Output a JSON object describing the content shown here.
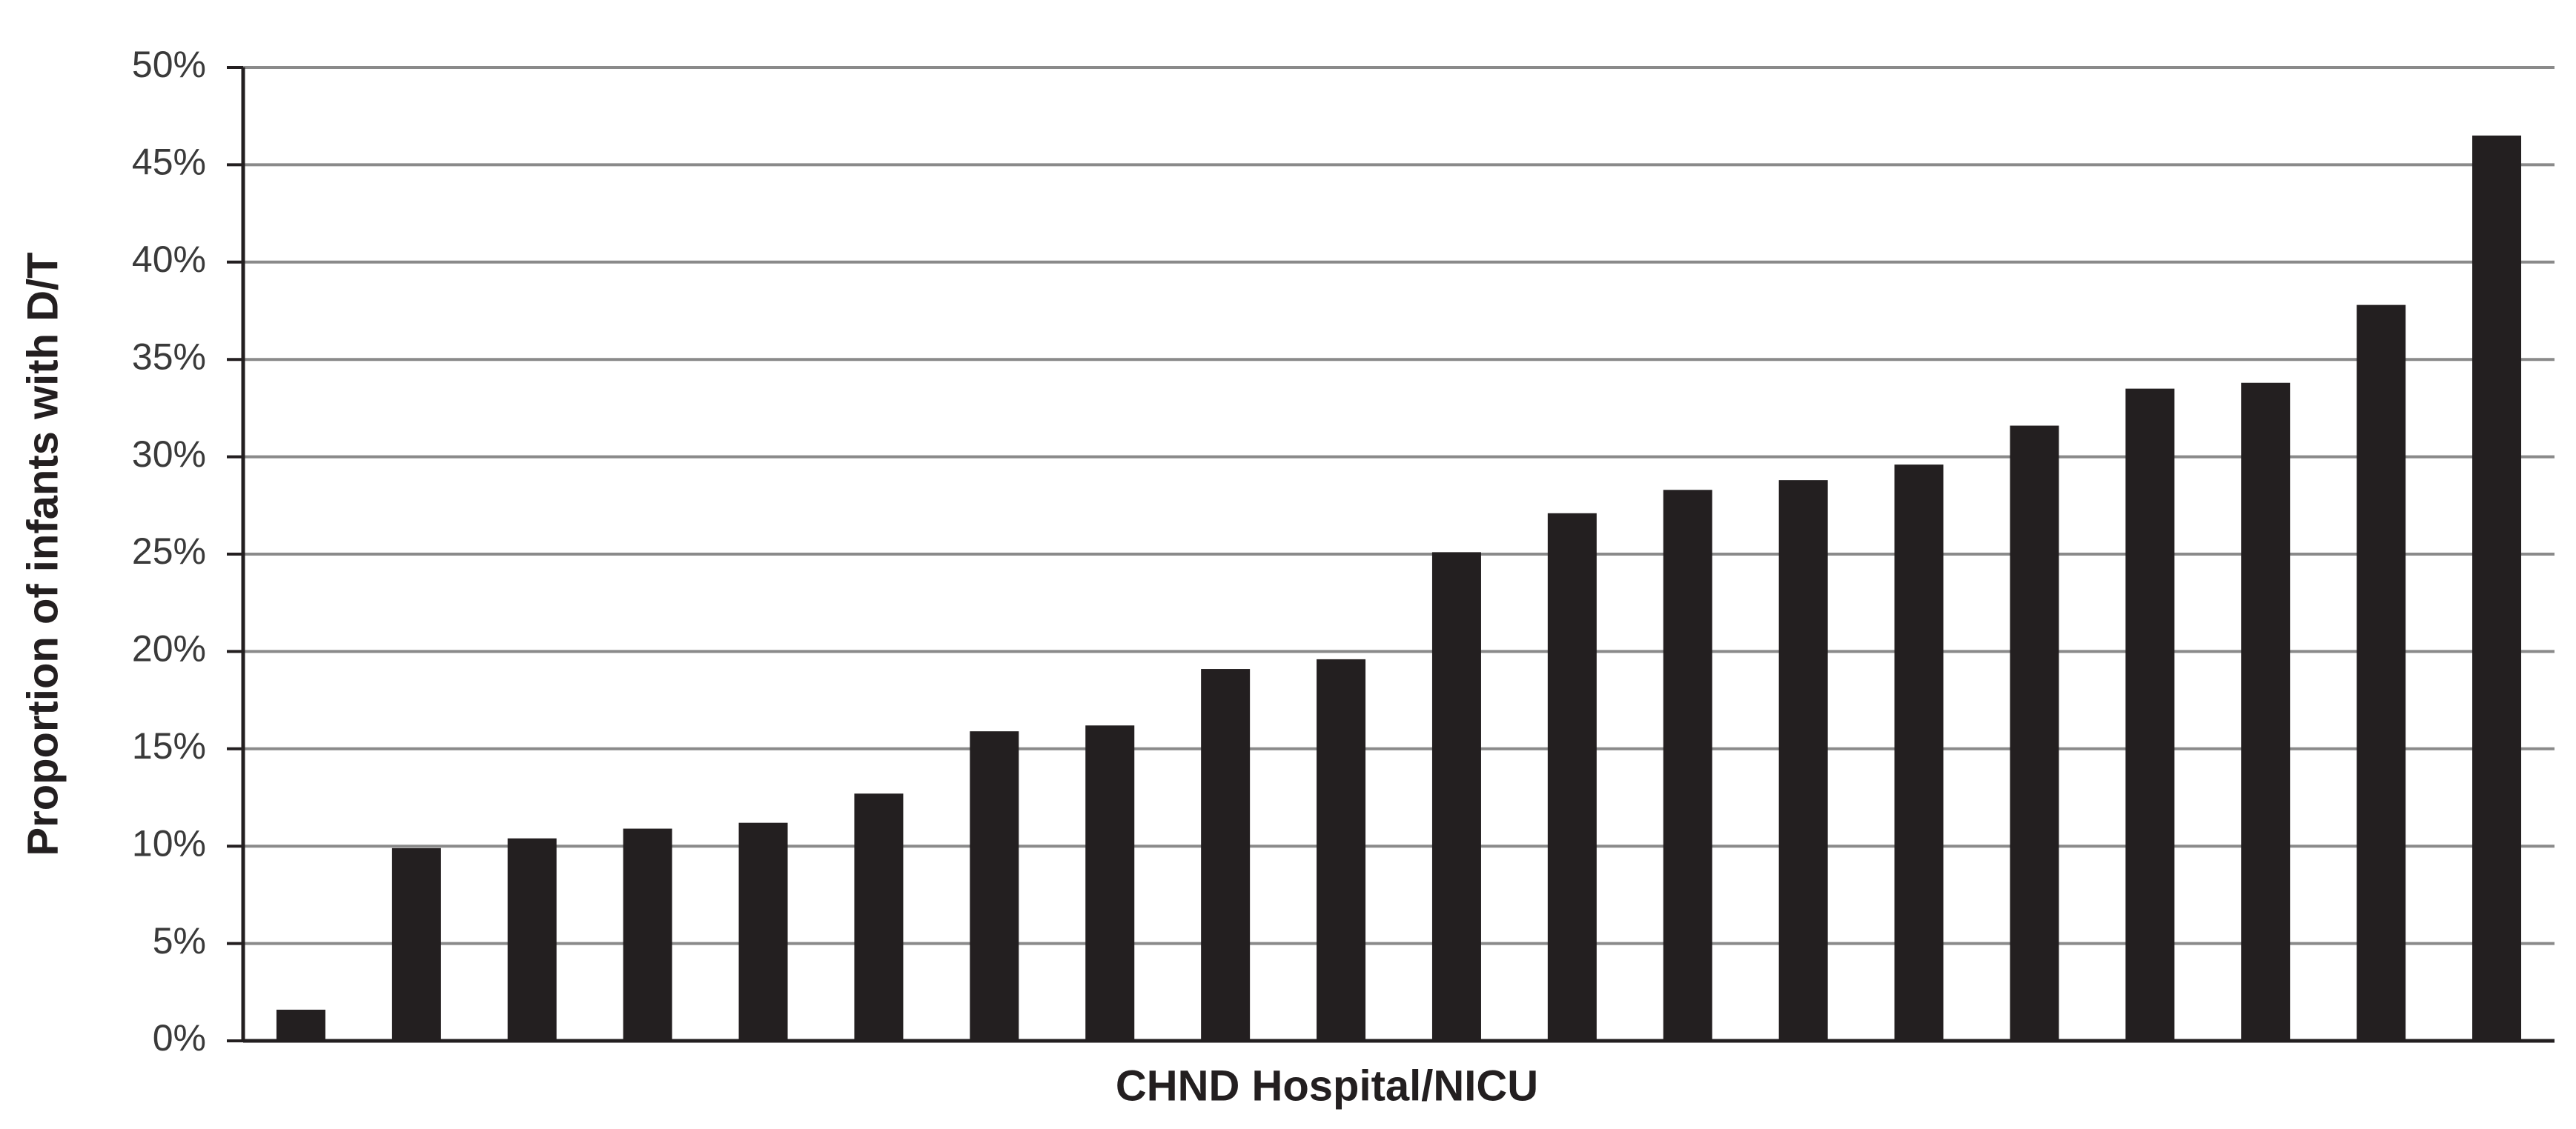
{
  "chart_data": {
    "type": "bar",
    "x_label": "CHND Hospital/NICU",
    "y_label": "Proportion of infants with D/T",
    "categories": [
      null,
      null,
      null,
      null,
      null,
      null,
      null,
      null,
      null,
      null,
      null,
      null,
      null,
      null,
      null,
      null,
      null,
      null,
      null,
      null
    ],
    "values": [
      1.6,
      9.9,
      10.4,
      10.9,
      11.2,
      12.7,
      15.9,
      16.2,
      19.1,
      19.6,
      25.1,
      27.1,
      28.3,
      28.8,
      29.6,
      31.6,
      33.5,
      33.8,
      37.8,
      46.5
    ],
    "color": "#231f20",
    "ylim": [
      0,
      50
    ],
    "yticks": [
      {
        "value": 0,
        "label": "0%"
      },
      {
        "value": 5,
        "label": "5%"
      },
      {
        "value": 10,
        "label": "10%"
      },
      {
        "value": 15,
        "label": "15%"
      },
      {
        "value": 20,
        "label": "20%"
      },
      {
        "value": 25,
        "label": "25%"
      },
      {
        "value": 30,
        "label": "30%"
      },
      {
        "value": 35,
        "label": "35%"
      },
      {
        "value": 40,
        "label": "40%"
      },
      {
        "value": 45,
        "label": "45%"
      },
      {
        "value": 50,
        "label": "50%"
      }
    ],
    "grid": true
  }
}
